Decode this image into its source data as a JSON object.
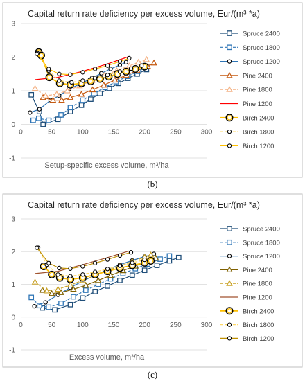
{
  "panels": [
    {
      "label": "(b)",
      "chart_data": {
        "type": "line",
        "title": "Capital return rate deficiency per excess volume,  Eur/(m³ *a)",
        "xlabel": "Setup-specific excess volume, m³/ha",
        "ylabel": "",
        "xlim": [
          0,
          300
        ],
        "ylim": [
          -1,
          3
        ],
        "xticks": [
          0,
          50,
          100,
          150,
          200,
          250,
          300
        ],
        "yticks": [
          -1,
          0,
          1,
          2,
          3
        ],
        "grid": true,
        "legend_position": "right",
        "series": [
          {
            "name": "Spruce 2400",
            "color": "#1f4e79",
            "marker": "square",
            "dash": "solid",
            "x": [
              17,
              30,
              36,
              60,
              80,
              98,
              113,
              128,
              143,
              158,
              173,
              188,
              203
            ],
            "y": [
              0.88,
              0.38,
              0.0,
              0.15,
              0.38,
              0.57,
              0.75,
              0.92,
              1.07,
              1.22,
              1.37,
              1.5,
              1.63
            ]
          },
          {
            "name": "Spruce 1800",
            "color": "#2e75b6",
            "marker": "square",
            "dash": "dashed",
            "x": [
              20,
              29,
              45,
              65,
              80,
              100,
              118,
              136,
              154,
              172,
              190,
              205
            ],
            "y": [
              0.12,
              0.18,
              0.12,
              0.28,
              0.5,
              0.72,
              0.92,
              1.1,
              1.27,
              1.43,
              1.58,
              1.72
            ]
          },
          {
            "name": "Spruce 1200",
            "color": "#2e75b6",
            "marker": "circle",
            "dash": "solid",
            "x": [
              15,
              30,
              48,
              62,
              78,
              98,
              115,
              130,
              145,
              160,
              170
            ],
            "y": [
              0.35,
              0.45,
              0.72,
              0.85,
              1.05,
              1.22,
              1.38,
              1.52,
              1.65,
              1.77,
              1.85
            ]
          },
          {
            "name": "Pine 2400",
            "color": "#c55a11",
            "marker": "triangle",
            "dash": "solid",
            "x": [
              36,
              52,
              66,
              80,
              98,
              116,
              134,
              152,
              170,
              188,
              205,
              215
            ],
            "y": [
              0.8,
              0.72,
              0.72,
              0.8,
              0.9,
              1.03,
              1.17,
              1.32,
              1.46,
              1.6,
              1.73,
              1.83
            ]
          },
          {
            "name": "Pine 1800",
            "color": "#f4b183",
            "marker": "triangle",
            "dash": "dashed",
            "x": [
              23,
              40,
              58,
              75,
              95,
              115,
              135,
              155,
              175,
              190,
              203
            ],
            "y": [
              1.07,
              0.85,
              0.9,
              1.0,
              1.15,
              1.3,
              1.46,
              1.6,
              1.74,
              1.85,
              1.93
            ]
          },
          {
            "name": "Pine 1200",
            "color": "#ff0000",
            "marker": "none",
            "dash": "solid",
            "x": [
              23,
              60,
              100,
              140,
              175
            ],
            "y": [
              1.33,
              1.4,
              1.58,
              1.8,
              2.02
            ]
          },
          {
            "name": "Birch 2400",
            "color": "#ffc000",
            "marker": "circle-big",
            "dash": "solid",
            "x": [
              29,
              33,
              46,
              63,
              80,
              98,
              113,
              128,
              142,
              156,
              170,
              185,
              200
            ],
            "y": [
              2.15,
              2.05,
              1.4,
              1.22,
              1.18,
              1.22,
              1.28,
              1.35,
              1.42,
              1.5,
              1.57,
              1.65,
              1.72
            ]
          },
          {
            "name": "Birch 1800",
            "color": "#ffd966",
            "marker": "circle",
            "dash": "dashed",
            "x": [
              27,
              45,
              62,
              82,
              100,
              120,
              140,
              160,
              178,
              195
            ],
            "y": [
              2.12,
              1.6,
              1.3,
              1.25,
              1.3,
              1.38,
              1.47,
              1.57,
              1.66,
              1.75
            ]
          },
          {
            "name": "Birch 1200",
            "color": "#ffc000",
            "marker": "circle",
            "dash": "solid",
            "x": [
              26,
              45,
              62,
              80,
              100,
              120,
              140,
              160,
              175
            ],
            "y": [
              2.1,
              1.65,
              1.5,
              1.48,
              1.55,
              1.65,
              1.75,
              1.87,
              1.97
            ]
          }
        ]
      }
    },
    {
      "label": "(c)",
      "chart_data": {
        "type": "line",
        "title": "Capital return rate deficiency per excess volume,  Eur/(m³ *a)",
        "xlabel": "Excess volume, m³/ha",
        "ylabel": "",
        "xlim": [
          0,
          300
        ],
        "ylim": [
          -1,
          3
        ],
        "xticks": [
          0,
          50,
          100,
          150,
          200,
          250,
          300
        ],
        "yticks": [
          -1,
          0,
          1,
          2,
          3
        ],
        "grid": true,
        "legend_position": "right",
        "series": [
          {
            "name": "Spruce 2400",
            "color": "#1f4e79",
            "marker": "square",
            "dash": "solid",
            "x": [
              35,
              55,
              80,
              100,
              120,
              140,
              160,
              180,
              200,
              220,
              240,
              255
            ],
            "y": [
              0.28,
              0.22,
              0.38,
              0.58,
              0.78,
              0.95,
              1.12,
              1.28,
              1.43,
              1.58,
              1.72,
              1.82
            ]
          },
          {
            "name": "Spruce 1800",
            "color": "#2e75b6",
            "marker": "square",
            "dash": "dashed",
            "x": [
              17,
              30,
              45,
              65,
              85,
              105,
              125,
              145,
              165,
              185,
              205,
              225,
              240
            ],
            "y": [
              0.6,
              0.35,
              0.3,
              0.42,
              0.62,
              0.82,
              1.0,
              1.17,
              1.33,
              1.48,
              1.62,
              1.77,
              1.87
            ]
          },
          {
            "name": "Spruce 1200",
            "color": "#2e75b6",
            "marker": "circle",
            "dash": "solid",
            "x": [
              22,
              40,
              60,
              80,
              100,
              120,
              140,
              160,
              180,
              200,
              215
            ],
            "y": [
              0.33,
              0.45,
              0.68,
              0.9,
              1.1,
              1.28,
              1.45,
              1.6,
              1.73,
              1.85,
              1.93
            ]
          },
          {
            "name": "Pine 2400",
            "color": "#7f6000",
            "marker": "triangle",
            "dash": "solid",
            "x": [
              35,
              50,
              65,
              85,
              105,
              125,
              145,
              165,
              185,
              205,
              218
            ],
            "y": [
              0.82,
              0.72,
              0.75,
              0.85,
              0.97,
              1.12,
              1.27,
              1.42,
              1.56,
              1.7,
              1.8
            ]
          },
          {
            "name": "Pine 1800",
            "color": "#c9a227",
            "marker": "triangle",
            "dash": "dashed",
            "x": [
              23,
              42,
              60,
              80,
              100,
              120,
              140,
              160,
              180,
              200,
              210
            ],
            "y": [
              1.07,
              0.8,
              0.85,
              0.98,
              1.12,
              1.27,
              1.42,
              1.56,
              1.7,
              1.83,
              1.9
            ]
          },
          {
            "name": "Pine 1200",
            "color": "#a0522d",
            "marker": "none",
            "dash": "solid",
            "x": [
              23,
              60,
              100,
              140,
              175
            ],
            "y": [
              1.33,
              1.4,
              1.6,
              1.82,
              2.02
            ]
          },
          {
            "name": "Birch 2400",
            "color": "#ffc000",
            "marker": "circle-big",
            "dash": "solid",
            "x": [
              37,
              50,
              63,
              80,
              100,
              120,
              140,
              160,
              180,
              200,
              210
            ],
            "y": [
              1.55,
              1.3,
              1.2,
              1.15,
              1.2,
              1.3,
              1.4,
              1.5,
              1.58,
              1.66,
              1.72
            ]
          },
          {
            "name": "Birch 1800",
            "color": "#ffd966",
            "marker": "circle",
            "dash": "dashed",
            "x": [
              28,
              42,
              60,
              80,
              100,
              120,
              140,
              160,
              180,
              200
            ],
            "y": [
              2.12,
              1.6,
              1.3,
              1.25,
              1.3,
              1.38,
              1.47,
              1.57,
              1.66,
              1.75
            ]
          },
          {
            "name": "Birch 1200",
            "color": "#bf9000",
            "marker": "circle",
            "dash": "solid",
            "x": [
              26,
              45,
              62,
              80,
              100,
              120,
              140,
              160,
              178
            ],
            "y": [
              2.12,
              1.65,
              1.5,
              1.48,
              1.55,
              1.65,
              1.76,
              1.88,
              1.98
            ]
          }
        ]
      }
    }
  ]
}
